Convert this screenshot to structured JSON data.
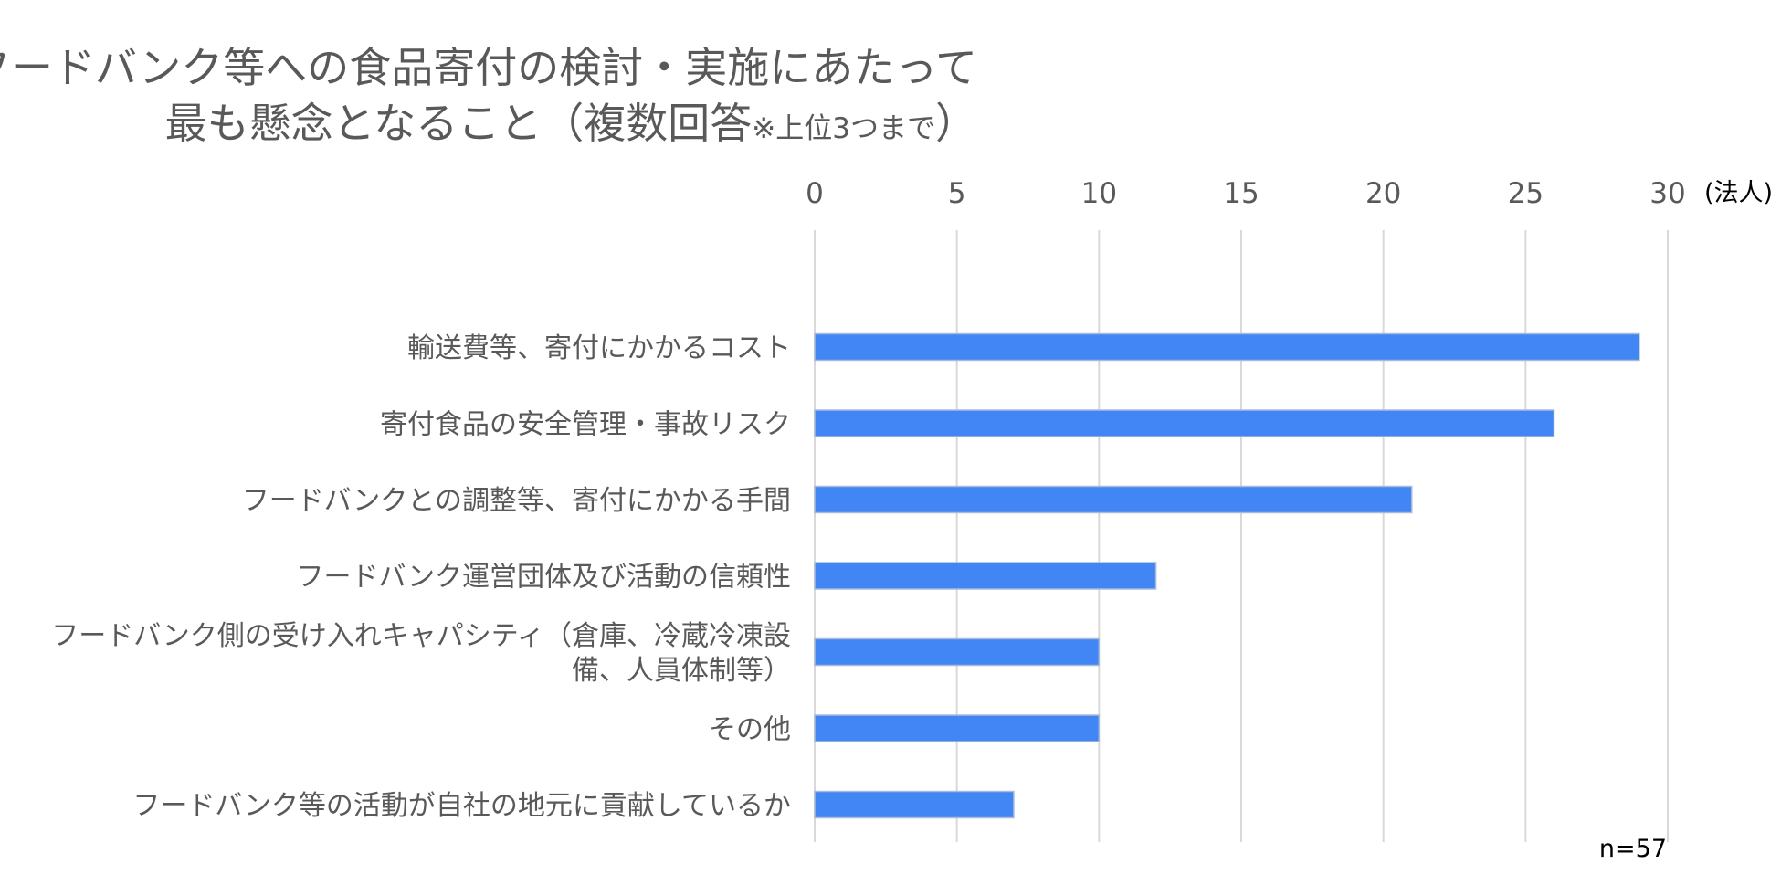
{
  "chart_data": {
    "type": "bar",
    "orientation": "horizontal",
    "title": "フードバンク等への食品寄付の検討・実施にあたって",
    "title_line2_main": "最も懸念となること（複数回答",
    "title_line2_note": "※上位3つまで",
    "title_line2_close": "）",
    "unit_label": "(法人)",
    "sample_note": "n=57",
    "xlim": [
      0,
      30
    ],
    "ticks": [
      "0",
      "5",
      "10",
      "15",
      "20",
      "25",
      "30"
    ],
    "tick_values": [
      0,
      5,
      10,
      15,
      20,
      25,
      30
    ],
    "axis_position": "top",
    "grid": true,
    "bar_color": "#4285F4",
    "bar_edge_color": "#A9BBD9",
    "grid_color": "#D9D9D9",
    "categories": [
      [
        "輸送費等、寄付にかかるコスト"
      ],
      [
        "寄付食品の安全管理・事故リスク"
      ],
      [
        "フードバンクとの調整等、寄付にかかる手間"
      ],
      [
        "フードバンク運営団体及び活動の信頼性"
      ],
      [
        "フードバンク側の受け入れキャパシティ（倉庫、冷蔵冷凍設",
        "備、人員体制等）"
      ],
      [
        "その他"
      ],
      [
        "フードバンク等の活動が自社の地元に貢献しているか"
      ]
    ],
    "values": [
      29,
      26,
      21,
      12,
      10,
      10,
      7
    ]
  }
}
